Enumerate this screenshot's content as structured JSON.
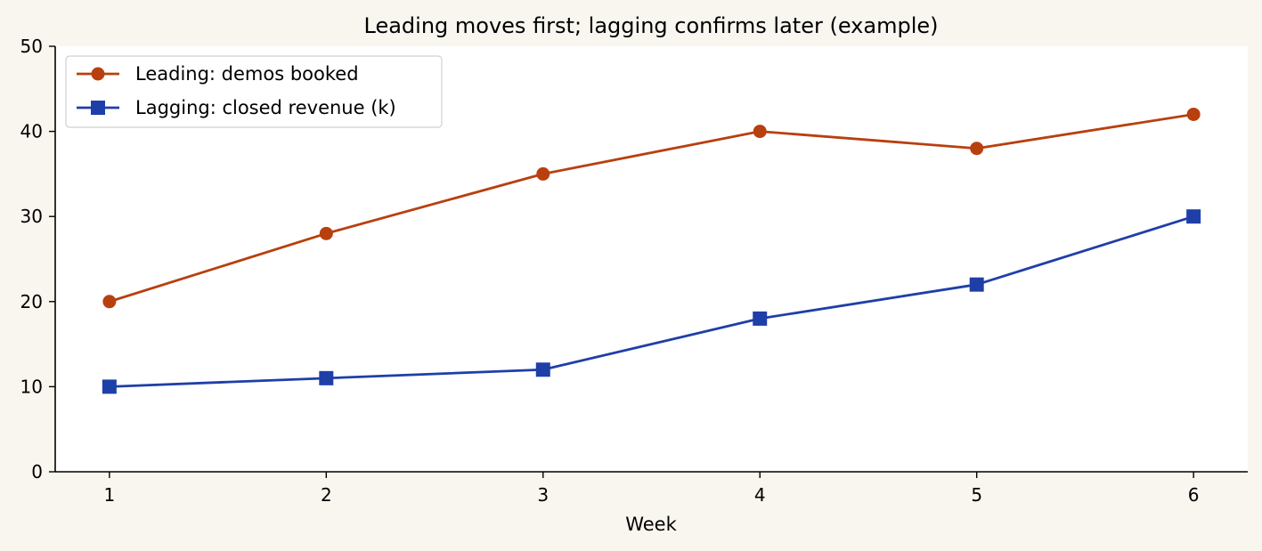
{
  "chart_data": {
    "type": "line",
    "title": "Leading moves first; lagging confirms later (example)",
    "xlabel": "Week",
    "ylabel": "",
    "x": [
      1,
      2,
      3,
      4,
      5,
      6
    ],
    "xticks": [
      "1",
      "2",
      "3",
      "4",
      "5",
      "6"
    ],
    "xlim": [
      0.75,
      6.25
    ],
    "ylim": [
      0,
      50
    ],
    "yticks": [
      "0",
      "10",
      "20",
      "30",
      "40",
      "50"
    ],
    "grid": false,
    "legend_position": "top-left",
    "series": [
      {
        "name": "Leading: demos booked",
        "values": [
          20,
          28,
          35,
          40,
          38,
          42
        ],
        "color": "#b8400f",
        "marker": "circle"
      },
      {
        "name": "Lagging: closed revenue (k)",
        "values": [
          10,
          11,
          12,
          18,
          22,
          30
        ],
        "color": "#1f3fa8",
        "marker": "square"
      }
    ]
  }
}
